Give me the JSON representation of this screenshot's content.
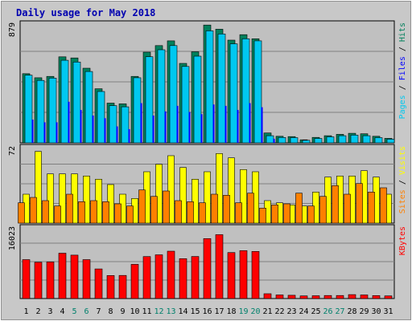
{
  "chart_data": {
    "type": "bar",
    "title": "Daily usage for May 2018",
    "categories": [
      "1",
      "2",
      "3",
      "4",
      "5",
      "6",
      "7",
      "8",
      "9",
      "10",
      "11",
      "12",
      "13",
      "14",
      "15",
      "16",
      "17",
      "18",
      "19",
      "20",
      "21",
      "22",
      "23",
      "24",
      "25",
      "26",
      "27",
      "28",
      "29",
      "30",
      "31"
    ],
    "weekend_days": [
      "5",
      "6",
      "12",
      "13",
      "19",
      "20",
      "26",
      "27"
    ],
    "panels": [
      {
        "id": "top",
        "max_label": "879",
        "max": 879,
        "legend": [
          "Pages",
          "/",
          "Files",
          "/",
          "Hits"
        ],
        "series": [
          {
            "name": "Hits",
            "color": "#00805c",
            "values": [
              505,
              475,
              485,
              628,
              620,
              545,
              395,
              290,
              285,
              485,
              662,
              710,
              745,
              580,
              665,
              860,
              830,
              750,
              790,
              760,
              72,
              48,
              46,
              22,
              40,
              52,
              62,
              70,
              66,
              48,
              33
            ]
          },
          {
            "name": "Files",
            "color": "#00c8f0",
            "values": [
              494,
              456,
              473,
              603,
              590,
              521,
              375,
              272,
              263,
              475,
              629,
              680,
              710,
              558,
              633,
              818,
              795,
              723,
              760,
              745,
              52,
              39,
              38,
              19,
              32,
              44,
              52,
              57,
              52,
              38,
              27
            ]
          },
          {
            "name": "Pages",
            "color": "#0000ff",
            "values": [
              170,
              150,
              150,
              300,
              240,
              200,
              180,
              120,
              100,
              290,
              200,
              230,
              270,
              225,
              210,
              280,
              270,
              240,
              290,
              260,
              30,
              0,
              0,
              0,
              0,
              0,
              0,
              0,
              0,
              0,
              0
            ]
          }
        ]
      },
      {
        "id": "middle",
        "max_label": "72",
        "max": 72,
        "legend": [
          "Sites",
          "/",
          "Visits"
        ],
        "series": [
          {
            "name": "Visits",
            "color": "#ffff00",
            "values": [
              27,
              67,
              46,
              46,
              46,
              44,
              41,
              36,
              27,
              23,
              48,
              55,
              63,
              52,
              41,
              48,
              65,
              61,
              50,
              48,
              21,
              19,
              17,
              16,
              29,
              43,
              44,
              44,
              49,
              43,
              27
            ]
          },
          {
            "name": "Sites",
            "color": "#ff8000",
            "values": [
              19,
              24,
              21,
              16,
              27,
              20,
              21,
              20,
              18,
              16,
              31,
              25,
              30,
              21,
              20,
              19,
              27,
              26,
              19,
              28,
              14,
              17,
              18,
              28,
              16,
              25,
              35,
              27,
              37,
              29,
              33
            ]
          }
        ]
      },
      {
        "id": "bottom",
        "max_label": "16023",
        "max": 16023,
        "legend": [
          "KBytes"
        ],
        "series": [
          {
            "name": "KBytes",
            "color": "#ff0000",
            "values": [
              8630,
              8050,
              8120,
              10050,
              9630,
              8630,
              6570,
              5110,
              5130,
              7590,
              9310,
              9710,
              10510,
              8840,
              9330,
              13300,
              14180,
              10200,
              10620,
              10450,
              1060,
              800,
              730,
              580,
              630,
              670,
              680,
              870,
              810,
              660,
              580
            ]
          }
        ]
      }
    ]
  }
}
